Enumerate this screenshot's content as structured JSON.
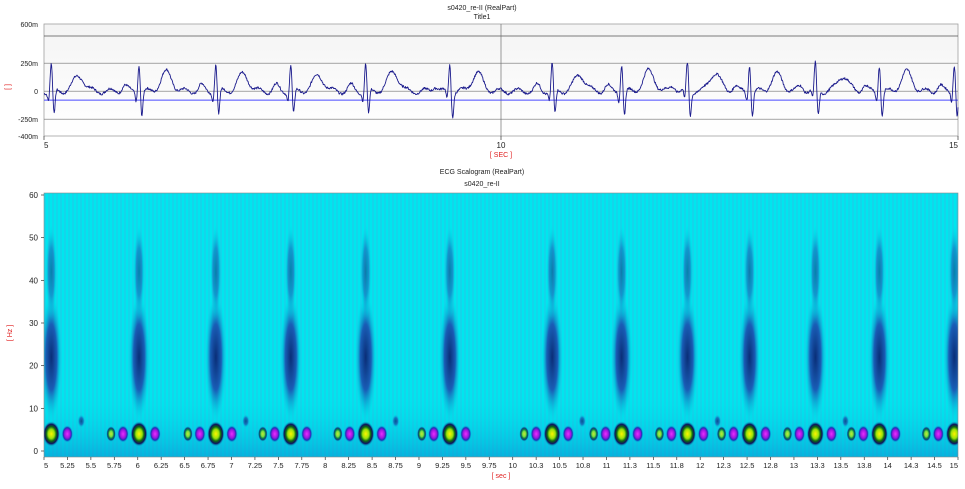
{
  "top_chart": {
    "title": "s0420_re-II (RealPart)",
    "subtitle": "Title1",
    "y_unit_label": "[ ]",
    "x_unit_label": "[ SEC ]",
    "y_ticks": [
      "600m",
      "250m",
      "0",
      "-250m",
      "-400m"
    ],
    "x_ticks": [
      "5",
      "10",
      "15"
    ]
  },
  "bottom_chart": {
    "title": "ECG Scalogram (RealPart)",
    "subtitle": "s0420_re-II",
    "y_unit_label": "[ Hz ]",
    "x_unit_label": "[ sec ]",
    "y_ticks": [
      "60",
      "50",
      "40",
      "30",
      "20",
      "10",
      "0"
    ],
    "x_ticks": [
      "5",
      "5.25",
      "5.5",
      "5.75",
      "6",
      "6.25",
      "6.5",
      "6.75",
      "7",
      "7.25",
      "7.5",
      "7.75",
      "8",
      "8.25",
      "8.5",
      "8.75",
      "9",
      "9.25",
      "9.5",
      "9.75",
      "10",
      "10.3",
      "10.5",
      "10.8",
      "11",
      "11.3",
      "11.5",
      "11.8",
      "12",
      "12.3",
      "12.5",
      "12.8",
      "13",
      "13.3",
      "13.5",
      "13.8",
      "14",
      "14.3",
      "14.5",
      "15"
    ]
  },
  "colors": {
    "signal": "#1a1a8c",
    "baseline": "#4a4aff",
    "unit_label": "#e02020",
    "scalogram_background": "#00e8ee"
  },
  "chart_data": [
    {
      "type": "line",
      "title": "s0420_re-II (RealPart)",
      "subtitle": "Title1",
      "xlabel": "[ SEC ]",
      "ylabel": "[ ]",
      "xlim": [
        5,
        15
      ],
      "ylim": [
        -0.4,
        0.6
      ],
      "grid": true,
      "baseline_y": -0.08,
      "series": [
        {
          "beat_times": [
            5.08,
            6.04,
            6.88,
            7.7,
            8.52,
            9.44,
            10.56,
            11.32,
            12.04,
            12.72,
            13.44,
            14.14,
            14.96
          ],
          "r_peak_amplitude": 0.25,
          "t_wave_amplitude": 0.16,
          "s_wave_amplitude": -0.22
        }
      ]
    },
    {
      "type": "heatmap",
      "title": "ECG Scalogram (RealPart)",
      "subtitle": "s0420_re-II",
      "xlabel": "[ sec ]",
      "ylabel": "[ Hz ]",
      "xlim": [
        5,
        15
      ],
      "ylim": [
        0,
        60
      ],
      "beat_times": [
        5.08,
        6.04,
        6.88,
        7.7,
        8.52,
        9.44,
        10.56,
        11.32,
        12.04,
        12.72,
        13.44,
        14.14,
        14.96
      ],
      "band_centers_hz": [
        4,
        20
      ]
    }
  ]
}
